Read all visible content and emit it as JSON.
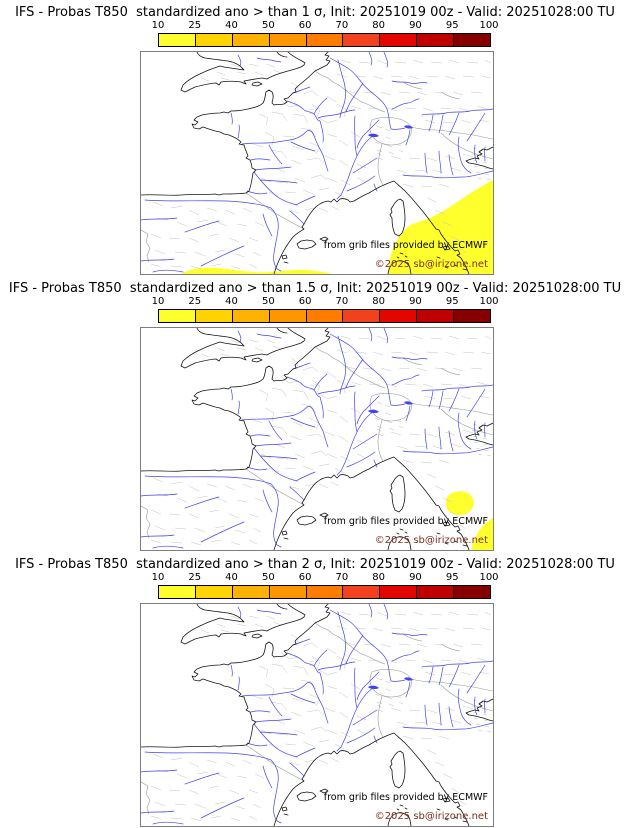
{
  "colorbar": {
    "tick_labels": [
      "10",
      "25",
      "40",
      "50",
      "60",
      "70",
      "80",
      "90",
      "95",
      "100"
    ],
    "segment_colors": [
      "#ffff2e",
      "#ffd300",
      "#ffb100",
      "#ff9600",
      "#ff7c00",
      "#f2411f",
      "#e30500",
      "#c00000",
      "#860000"
    ],
    "overlay_fill": "#ffff2e",
    "border_color": "#000000"
  },
  "map_style": {
    "coastline_color": "#151515",
    "river_color": "#4245ee",
    "admin_border_color": "#c3c3c3",
    "sea_color": "#ffffff",
    "frame_color": "#7d7d7d",
    "copyright_color": "#7d2e1d"
  },
  "panels": [
    {
      "title": "IFS - Probas T850  standardized ano > than 1 σ, Init: 20251019 00z - Valid: 20251028:00 TU",
      "threshold_sigma": "1",
      "credit": "from grib files provided by ECMWF",
      "copyright": "©2025 sb@irizone.net",
      "shaded_regions": [
        "M352,128 C340,134 328,142 316,150 C306,157 296,163 286,167 C278,170 272,171 268,174 C263,178 258,184 254,192 C251,198 249,205 248,212 C247,215 247,218 247,222 L352,222 Z",
        "M40,222 C48,217 60,215 74,216 C88,217 100,219 112,220 C126,221 138,219 152,218 C164,217 176,219 188,221 L190,222 Z"
      ]
    },
    {
      "title": "IFS - Probas T850  standardized ano > than 1.5 σ, Init: 20251019 00z - Valid: 20251028:00 TU",
      "threshold_sigma": "1.5",
      "credit": "from grib files provided by ECMWF",
      "copyright": "©2025 sb@irizone.net",
      "shaded_regions": [
        "M305,176 C304,170 308,165 314,164 C321,162 328,164 331,169 C334,174 333,180 328,184 C323,188 315,188 310,185 C306,182 305,179 305,176 Z",
        "M330,222 C332,212 337,202 344,196 C347,193 350,191 352,190 L352,222 Z"
      ]
    },
    {
      "title": "IFS - Probas T850  standardized ano > than 2 σ, Init: 20251019 00z - Valid: 20251028:00 TU",
      "threshold_sigma": "2",
      "credit": "from grib files provided by ECMWF",
      "copyright": "©2025 sb@irizone.net",
      "shaded_regions": []
    }
  ]
}
